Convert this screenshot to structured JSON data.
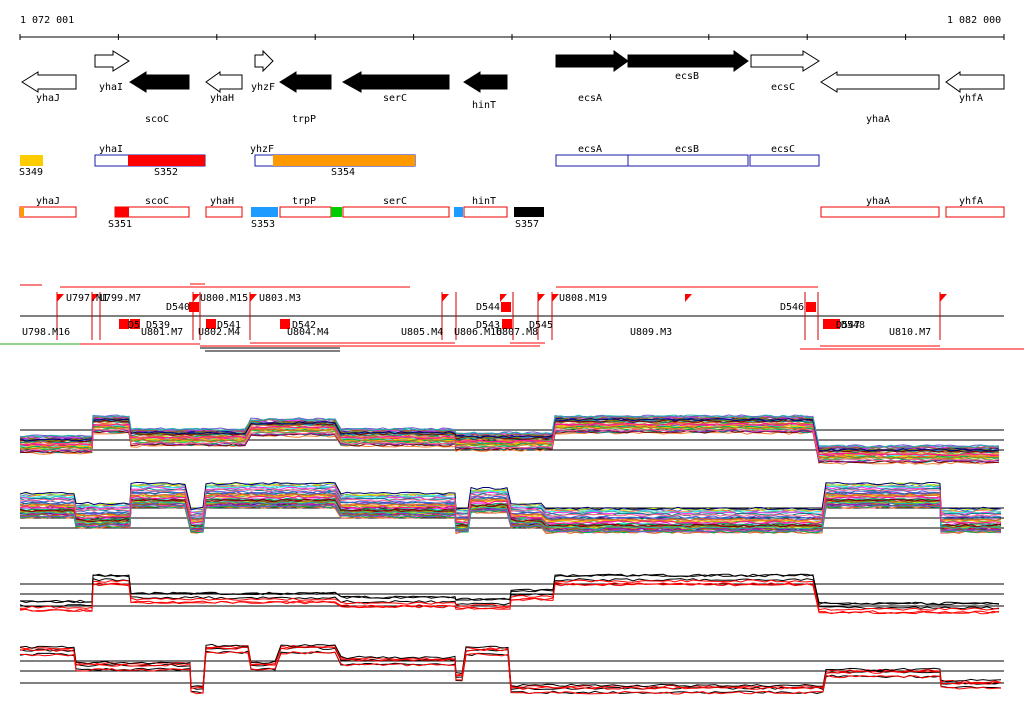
{
  "ruler": {
    "start_label": "1 072 001",
    "end_label": "1 082 000"
  },
  "colors": {
    "black": "#000000",
    "red": "#ff0000",
    "orange": "#ff9900",
    "yellow": "#ffcc00",
    "blue_outline": "#1a1aaa",
    "light_blue": "#1e9bff",
    "green": "#00cc00",
    "grey_line": "#555555"
  },
  "genes": [
    {
      "name": "yhaJ",
      "dir": "left",
      "fill": "white"
    },
    {
      "name": "yhaI",
      "dir": "right",
      "fill": "white"
    },
    {
      "name": "scoC",
      "dir": "left",
      "fill": "black"
    },
    {
      "name": "yhaH",
      "dir": "left",
      "fill": "white"
    },
    {
      "name": "yhzF",
      "dir": "right",
      "fill": "white"
    },
    {
      "name": "trpP",
      "dir": "left",
      "fill": "black"
    },
    {
      "name": "serC",
      "dir": "left",
      "fill": "black"
    },
    {
      "name": "hinT",
      "dir": "left",
      "fill": "black"
    },
    {
      "name": "ecsA",
      "dir": "right",
      "fill": "black"
    },
    {
      "name": "ecsB",
      "dir": "right",
      "fill": "black"
    },
    {
      "name": "ecsC",
      "dir": "right",
      "fill": "white"
    },
    {
      "name": "yhaA",
      "dir": "left",
      "fill": "white"
    },
    {
      "name": "yhfA",
      "dir": "left",
      "fill": "white"
    }
  ],
  "operons_fwd": {
    "boxes": [
      "yhaI",
      "yhzF",
      "ecsA",
      "ecsB",
      "ecsC"
    ],
    "segments": [
      "S349",
      "S352",
      "S354"
    ]
  },
  "operons_rev": {
    "boxes": [
      "yhaJ",
      "scoC",
      "yhaH",
      "trpP",
      "serC",
      "hinT",
      "yhaA",
      "yhfA"
    ],
    "segments": [
      "S351",
      "S353",
      "S357"
    ]
  },
  "transcripts_top": [
    "U797.M1",
    "U799.M7",
    "D540",
    "U800.M15",
    "U803.M3",
    "D544",
    "U808.M19",
    "D546"
  ],
  "transcripts_bottom": [
    "U798.M16",
    "D5",
    "D539",
    "U801.M7",
    "U802.M4",
    "D541",
    "D542",
    "U804.M4",
    "U805.M4",
    "D543",
    "U806.M16",
    "U807.M8",
    "D545",
    "U809.M3",
    "D547",
    "D548",
    "U810.M7"
  ]
}
